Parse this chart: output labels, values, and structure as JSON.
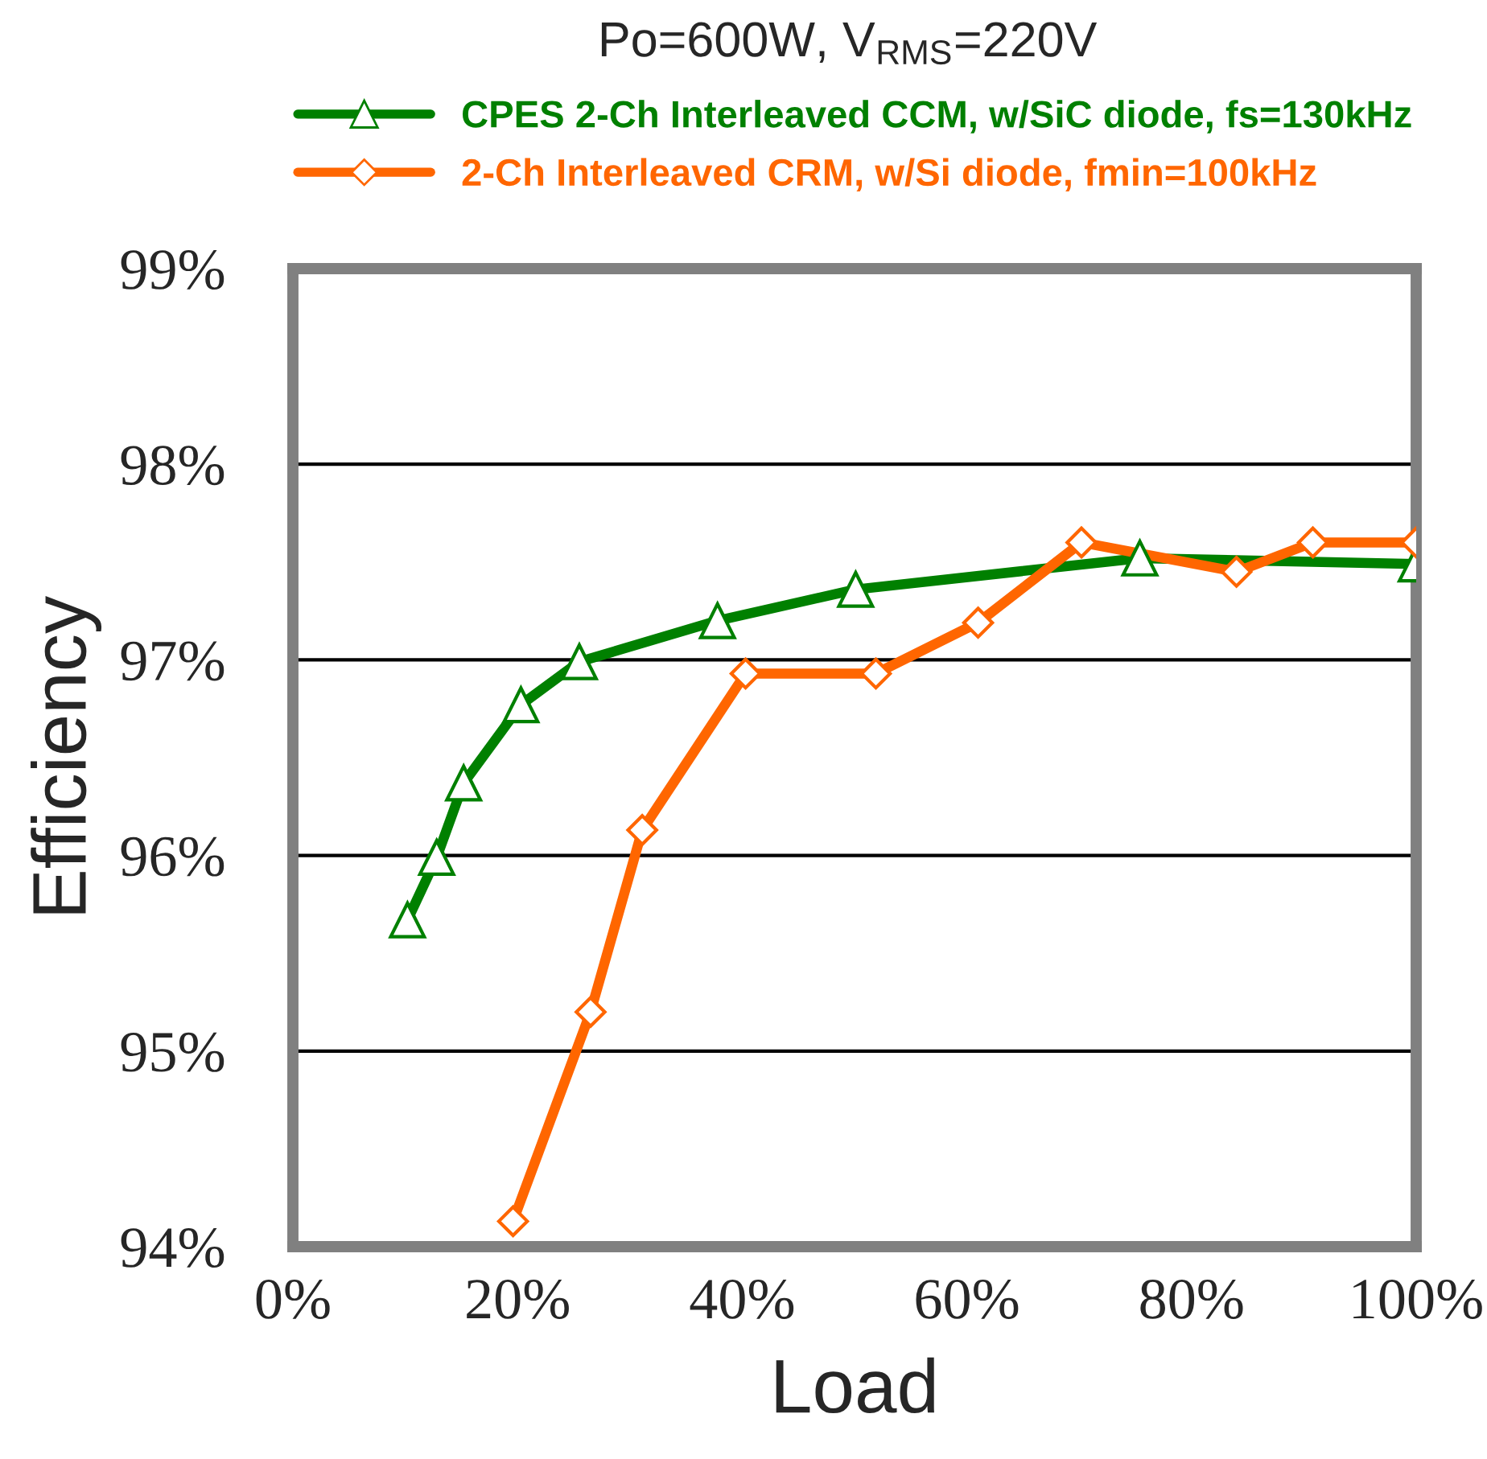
{
  "chart_data": {
    "type": "line",
    "title": "Po=600W, V$_{RMS}$=220V",
    "xlabel": "Load",
    "ylabel": "Efficiency",
    "xlim": [
      0,
      100
    ],
    "xticks": [
      {
        "value": 0,
        "label": "0%"
      },
      {
        "value": 20,
        "label": "20%"
      },
      {
        "value": 40,
        "label": "40%"
      },
      {
        "value": 60,
        "label": "60%"
      },
      {
        "value": 80,
        "label": "80%"
      },
      {
        "value": 100,
        "label": "100%"
      }
    ],
    "ylim": [
      94,
      99
    ],
    "yticks": [
      {
        "value": 94,
        "label": "94%"
      },
      {
        "value": 95,
        "label": "95%"
      },
      {
        "value": 96,
        "label": "96%"
      },
      {
        "value": 97,
        "label": "97%"
      },
      {
        "value": 98,
        "label": "98%"
      },
      {
        "value": 99,
        "label": "99%"
      }
    ],
    "grid": "y",
    "legend": "top",
    "series": [
      {
        "name": "CPES 2-Ch Interleaved CCM, w/SiC diode, fs=130kHz",
        "color": "#008000",
        "marker": "triangle",
        "x": [
          10.2,
          12.8,
          15.2,
          20.3,
          25.5,
          37.8,
          50.1,
          75.4,
          100
        ],
        "values": [
          95.67,
          95.99,
          96.37,
          96.77,
          96.99,
          97.2,
          97.36,
          97.52,
          97.49
        ]
      },
      {
        "name": "2-Ch Interleaved CRM, w/Si diode, fmin=100kHz",
        "color": "#ff6600",
        "marker": "diamond",
        "x": [
          19.6,
          26.5,
          31.1,
          40.3,
          51.9,
          61.0,
          70.2,
          84.0,
          90.8,
          100
        ],
        "values": [
          94.13,
          95.2,
          96.13,
          96.93,
          96.93,
          97.19,
          97.6,
          97.45,
          97.6,
          97.6
        ]
      }
    ]
  }
}
